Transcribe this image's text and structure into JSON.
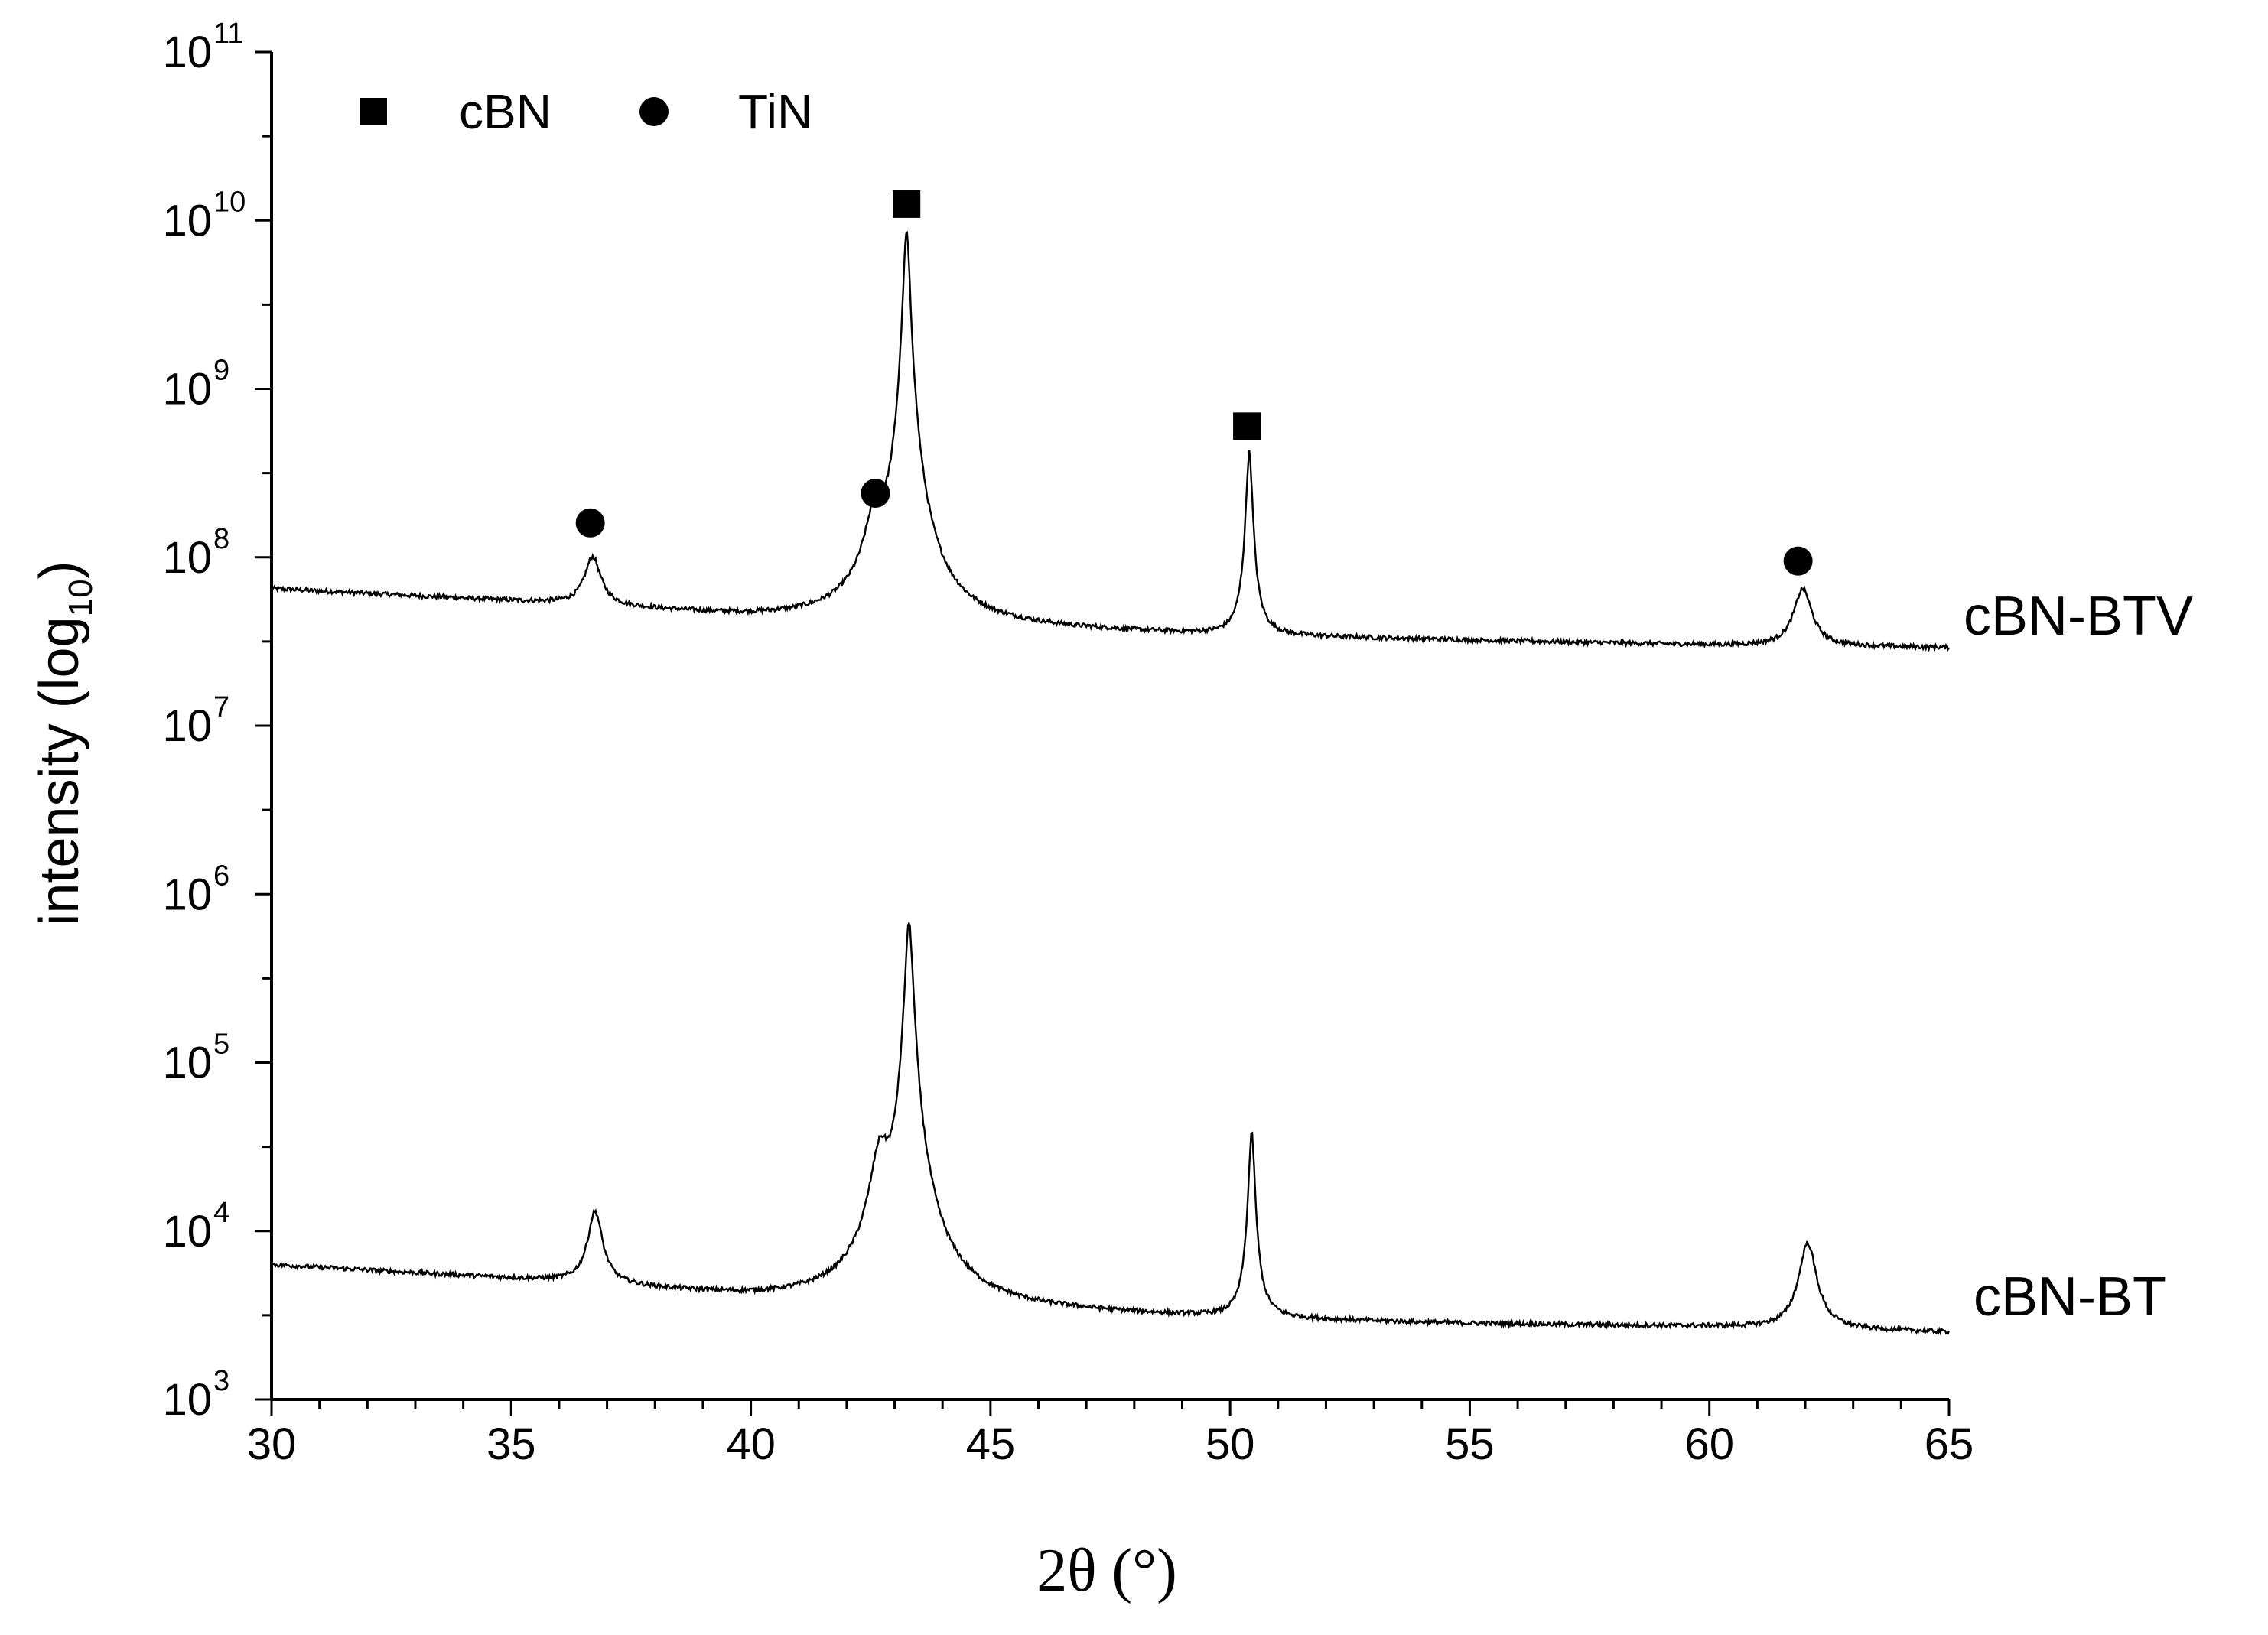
{
  "chart_data": {
    "type": "line",
    "title": "",
    "xlabel": "2θ (°)",
    "ylabel": "intensity (log10)",
    "ylabel_main": "intensity (log",
    "ylabel_sub": "10",
    "ylabel_close": ")",
    "xlim": [
      30,
      65
    ],
    "x_ticks": [
      30,
      35,
      40,
      45,
      50,
      55,
      60,
      65
    ],
    "y_scale": "log",
    "ylim": [
      1000,
      100000000000
    ],
    "y_ticks": [
      {
        "base": "10",
        "exp": "3",
        "value": 1000
      },
      {
        "base": "10",
        "exp": "4",
        "value": 10000
      },
      {
        "base": "10",
        "exp": "5",
        "value": 100000
      },
      {
        "base": "10",
        "exp": "6",
        "value": 1000000
      },
      {
        "base": "10",
        "exp": "7",
        "value": 10000000
      },
      {
        "base": "10",
        "exp": "8",
        "value": 100000000
      },
      {
        "base": "10",
        "exp": "9",
        "value": 1000000000
      },
      {
        "base": "10",
        "exp": "10",
        "value": 10000000000
      },
      {
        "base": "10",
        "exp": "11",
        "value": 100000000000
      }
    ],
    "grid": false,
    "legend": {
      "placement": "top-left",
      "entries": [
        {
          "label": "cBN",
          "marker": "square"
        },
        {
          "label": "TiN",
          "marker": "circle"
        }
      ]
    },
    "series": [
      {
        "name": "cBN-BTV",
        "color": "#000000",
        "baseline": [
          [
            30,
            65000000
          ],
          [
            36,
            53000000
          ],
          [
            40,
            44000000
          ],
          [
            45,
            38000000
          ],
          [
            50,
            34000000
          ],
          [
            55,
            32000000
          ],
          [
            60,
            30000000
          ],
          [
            65,
            29000000
          ]
        ],
        "peaks": [
          {
            "x": 36.7,
            "y": 100000000,
            "width": 0.35
          },
          {
            "x": 42.6,
            "y": 155000000,
            "width": 0.4
          },
          {
            "x": 43.25,
            "y": 8500000000,
            "width": 0.13
          },
          {
            "x": 50.4,
            "y": 420000000,
            "width": 0.12
          },
          {
            "x": 61.95,
            "y": 65000000,
            "width": 0.38
          }
        ]
      },
      {
        "name": "cBN-BT",
        "color": "#000000",
        "baseline": [
          [
            30,
            6300
          ],
          [
            36,
            5000
          ],
          [
            40,
            4000
          ],
          [
            45,
            3400
          ],
          [
            50,
            3000
          ],
          [
            55,
            2800
          ],
          [
            60,
            2700
          ],
          [
            65,
            2500
          ]
        ],
        "peaks": [
          {
            "x": 36.75,
            "y": 13000,
            "width": 0.3
          },
          {
            "x": 42.7,
            "y": 26000,
            "width": 0.38
          },
          {
            "x": 43.3,
            "y": 680000,
            "width": 0.15
          },
          {
            "x": 50.45,
            "y": 38000,
            "width": 0.12
          },
          {
            "x": 62.05,
            "y": 8500,
            "width": 0.35
          }
        ]
      }
    ],
    "annotations": [
      {
        "marker": "circle",
        "phase": "TiN",
        "x": 36.65,
        "y": 160000000
      },
      {
        "marker": "circle",
        "phase": "TiN",
        "x": 42.6,
        "y": 240000000
      },
      {
        "marker": "square",
        "phase": "cBN",
        "x": 43.25,
        "y": 12500000000
      },
      {
        "marker": "square",
        "phase": "cBN",
        "x": 50.35,
        "y": 600000000
      },
      {
        "marker": "circle",
        "phase": "TiN",
        "x": 61.85,
        "y": 95000000
      }
    ]
  }
}
